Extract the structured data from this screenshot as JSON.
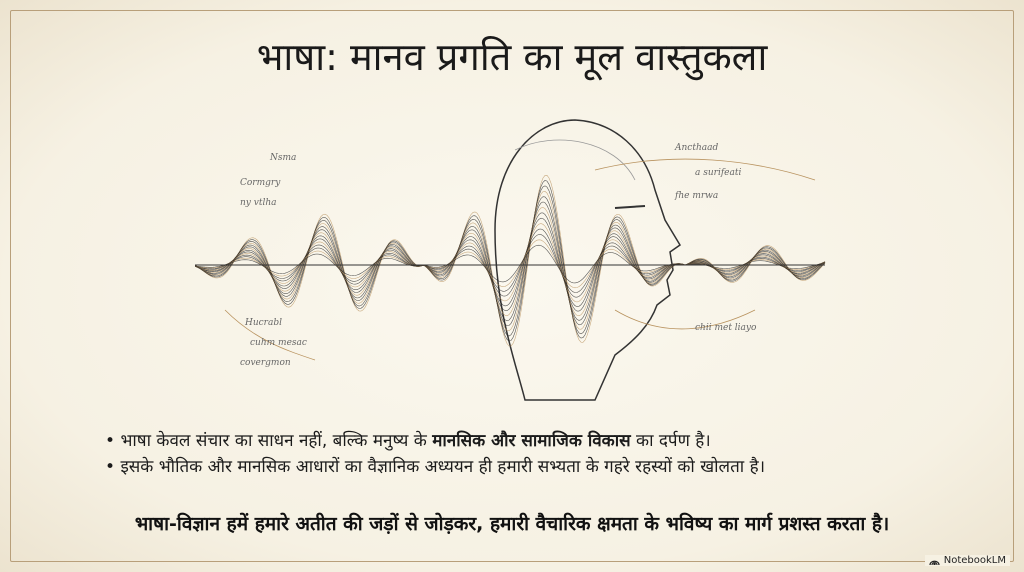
{
  "title": "भाषा: मानव प्रगति का मूल वास्तुकला",
  "bullets": [
    {
      "pre": "भाषा केवल संचार का साधन नहीं, बल्कि मनुष्य के ",
      "bold": "मानसिक और सामाजिक विकास",
      "post": " का दर्पण है।"
    },
    {
      "pre": "इसके भौतिक और मानसिक आधारों का वैज्ञानिक अध्ययन ही हमारी सभ्यता के गहरे रहस्यों को खोलता है।",
      "bold": "",
      "post": ""
    }
  ],
  "conclusion": "भाषा-विज्ञान हमें हमारे अतीत की जड़ों से जोड़कर, हमारी वैचारिक क्षमता के भविष्य का मार्ग प्रशस्त करता है।",
  "brand": {
    "label": "NotebookLM",
    "icon": "notebooklm-logo-icon"
  },
  "colors": {
    "background": "#f6f1e3",
    "frame": "#b89f7a",
    "wave_dark": "#222222",
    "wave_gold": "#b8925e"
  }
}
